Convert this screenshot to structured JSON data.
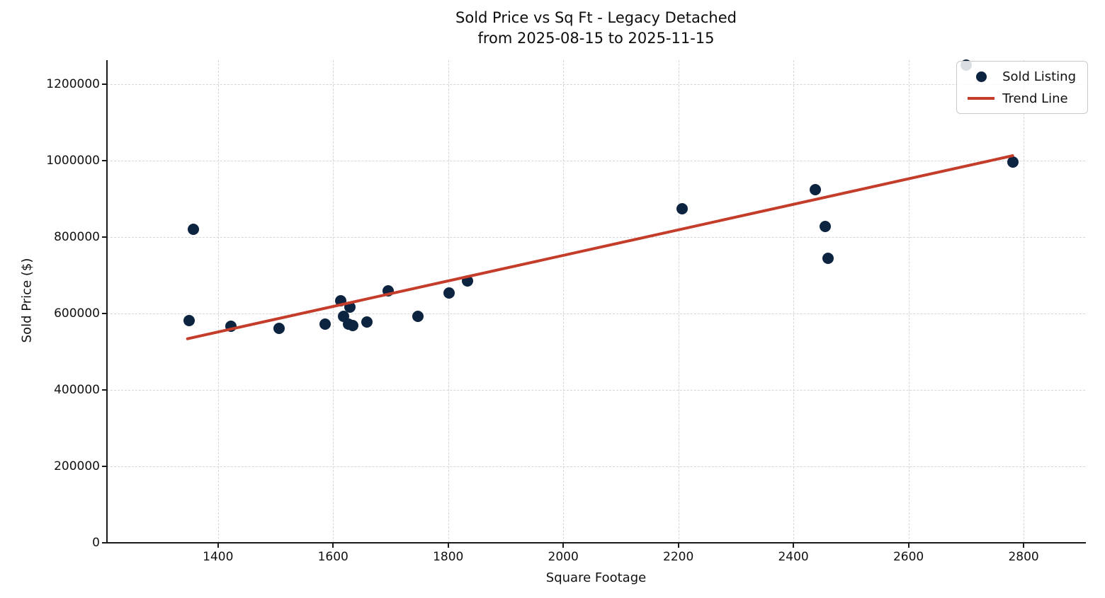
{
  "title": "Sold Price vs Sq Ft - Legacy Detached",
  "subtitle": "from 2025-08-15 to 2025-11-15",
  "colors": {
    "scatter": "#0d2440",
    "trend": "#c43d2b",
    "grid": "#d6d6d6",
    "spine": "#1a1a1a",
    "text": "#111111",
    "background": "#ffffff"
  },
  "chart_data": {
    "type": "scatter",
    "title": "Sold Price vs Sq Ft - Legacy Detached",
    "subtitle": "from 2025-08-15 to 2025-11-15",
    "xlabel": "Square Footage",
    "ylabel": "Sold Price ($)",
    "xlim": [
      1207,
      2907
    ],
    "ylim": [
      0,
      1263000
    ],
    "x_ticks": [
      1400,
      1600,
      1800,
      2000,
      2200,
      2400,
      2600,
      2800
    ],
    "y_ticks": [
      0,
      200000,
      400000,
      600000,
      800000,
      1000000,
      1200000
    ],
    "grid": true,
    "legend_position": "upper right",
    "series": [
      {
        "name": "Sold Listing",
        "type": "scatter",
        "color": "#0d2440",
        "points": [
          [
            1350,
            581000
          ],
          [
            1357,
            820000
          ],
          [
            1422,
            566000
          ],
          [
            1506,
            562000
          ],
          [
            1586,
            572000
          ],
          [
            1613,
            633000
          ],
          [
            1629,
            616000
          ],
          [
            1618,
            592000
          ],
          [
            1627,
            572000
          ],
          [
            1634,
            568000
          ],
          [
            1659,
            578000
          ],
          [
            1696,
            659000
          ],
          [
            1748,
            592000
          ],
          [
            1801,
            653000
          ],
          [
            1833,
            685000
          ],
          [
            2207,
            874000
          ],
          [
            2438,
            924000
          ],
          [
            2455,
            828000
          ],
          [
            2460,
            744000
          ],
          [
            2700,
            1250000
          ],
          [
            2781,
            997000
          ]
        ]
      },
      {
        "name": "Trend Line",
        "type": "line",
        "color": "#c43d2b",
        "points": [
          [
            1347,
            534000
          ],
          [
            2781,
            1013000
          ]
        ]
      }
    ]
  }
}
